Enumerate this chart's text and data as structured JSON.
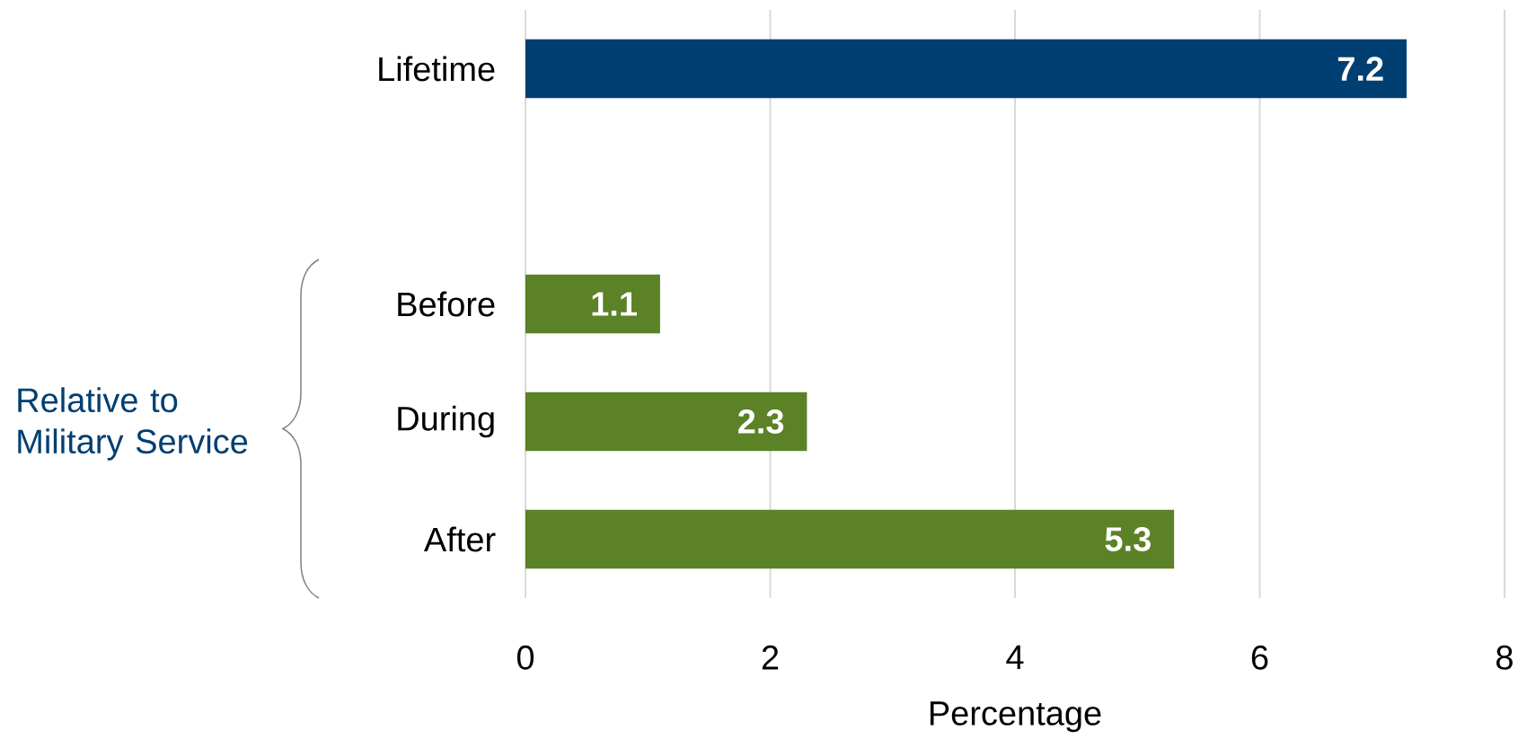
{
  "chart_data": {
    "type": "bar",
    "orientation": "horizontal",
    "xlabel": "Percentage",
    "categories": [
      "Lifetime",
      null,
      "Before",
      "During",
      "After"
    ],
    "values": [
      7.2,
      null,
      1.1,
      2.3,
      5.3
    ],
    "colors": [
      "#003f72",
      null,
      "#5b8226",
      "#5b8226",
      "#5b8226"
    ],
    "xlim": [
      0,
      8
    ],
    "xticks": [
      0,
      2,
      4,
      6,
      8
    ],
    "grid": "x",
    "data_labels": true,
    "annotations": [
      "Relative to Military Service"
    ]
  }
}
